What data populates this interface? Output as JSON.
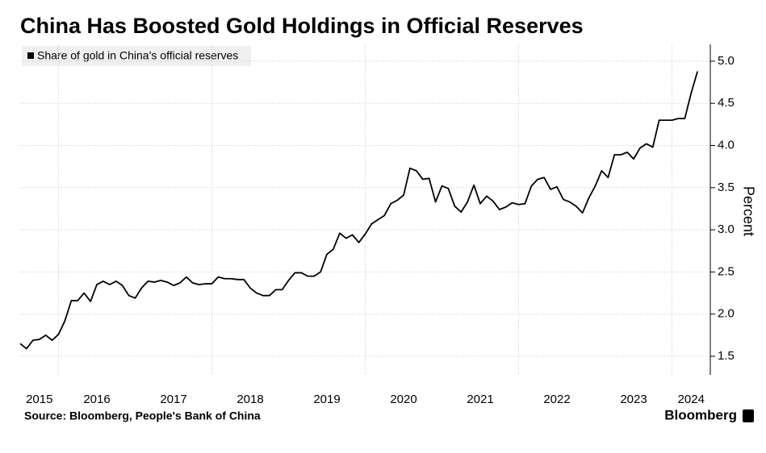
{
  "chart_data": {
    "type": "line",
    "title": "China Has Boosted Gold Holdings in Official Reserves",
    "y_label": "Percent",
    "source": "Source: Bloomberg, People's Bank of China",
    "brand": "Bloomberg",
    "series": [
      {
        "name": "Share of gold in China’s official reserves",
        "color": "#000000",
        "values": [
          1.65,
          1.59,
          1.69,
          1.7,
          1.75,
          1.69,
          1.76,
          1.92,
          2.16,
          2.16,
          2.25,
          2.15,
          2.35,
          2.39,
          2.35,
          2.39,
          2.34,
          2.22,
          2.19,
          2.31,
          2.39,
          2.38,
          2.4,
          2.38,
          2.34,
          2.37,
          2.44,
          2.37,
          2.35,
          2.36,
          2.36,
          2.44,
          2.42,
          2.42,
          2.41,
          2.41,
          2.31,
          2.25,
          2.22,
          2.22,
          2.29,
          2.29,
          2.4,
          2.49,
          2.49,
          2.45,
          2.45,
          2.5,
          2.71,
          2.77,
          2.96,
          2.9,
          2.94,
          2.85,
          2.95,
          3.07,
          3.12,
          3.17,
          3.31,
          3.35,
          3.41,
          3.73,
          3.7,
          3.6,
          3.61,
          3.33,
          3.52,
          3.49,
          3.28,
          3.21,
          3.33,
          3.53,
          3.31,
          3.4,
          3.34,
          3.24,
          3.27,
          3.32,
          3.3,
          3.31,
          3.52,
          3.6,
          3.62,
          3.48,
          3.51,
          3.36,
          3.33,
          3.28,
          3.2,
          3.38,
          3.52,
          3.7,
          3.62,
          3.89,
          3.89,
          3.92,
          3.84,
          3.97,
          4.02,
          3.98,
          4.3,
          4.3,
          4.3,
          4.32,
          4.32,
          4.62,
          4.88
        ]
      }
    ],
    "x": [
      2015.5,
      2015.583,
      2015.667,
      2015.75,
      2015.833,
      2015.917,
      2016,
      2016.083,
      2016.167,
      2016.25,
      2016.333,
      2016.417,
      2016.5,
      2016.583,
      2016.667,
      2016.75,
      2016.833,
      2016.917,
      2017,
      2017.083,
      2017.167,
      2017.25,
      2017.333,
      2017.417,
      2017.5,
      2017.583,
      2017.667,
      2017.75,
      2017.833,
      2017.917,
      2018,
      2018.083,
      2018.167,
      2018.25,
      2018.333,
      2018.417,
      2018.5,
      2018.583,
      2018.667,
      2018.75,
      2018.833,
      2018.917,
      2019,
      2019.083,
      2019.167,
      2019.25,
      2019.333,
      2019.417,
      2019.5,
      2019.583,
      2019.667,
      2019.75,
      2019.833,
      2019.917,
      2020,
      2020.083,
      2020.167,
      2020.25,
      2020.333,
      2020.417,
      2020.5,
      2020.583,
      2020.667,
      2020.75,
      2020.833,
      2020.917,
      2021,
      2021.083,
      2021.167,
      2021.25,
      2021.333,
      2021.417,
      2021.5,
      2021.583,
      2021.667,
      2021.75,
      2021.833,
      2021.917,
      2022,
      2022.083,
      2022.167,
      2022.25,
      2022.333,
      2022.417,
      2022.5,
      2022.583,
      2022.667,
      2022.75,
      2022.833,
      2022.917,
      2023,
      2023.083,
      2023.167,
      2023.25,
      2023.333,
      2023.417,
      2023.5,
      2023.583,
      2023.667,
      2023.75,
      2023.833,
      2023.917,
      2024,
      2024.083,
      2024.167,
      2024.25,
      2024.333
    ],
    "xlim": [
      2015.5,
      2024.5
    ],
    "xticks": [
      2015,
      2016,
      2017,
      2018,
      2019,
      2020,
      2021,
      2022,
      2023,
      2024
    ],
    "ylim": [
      1.28,
      5.2
    ],
    "yticks": [
      1.5,
      {
        "value": 2,
        "label": "2.0"
      },
      2.5,
      {
        "value": 3,
        "label": "3.0"
      },
      3.5,
      {
        "value": 4,
        "label": "4.0"
      },
      4.5,
      {
        "value": 5,
        "label": "5.0"
      }
    ],
    "grid": true,
    "legend": "upper left"
  }
}
